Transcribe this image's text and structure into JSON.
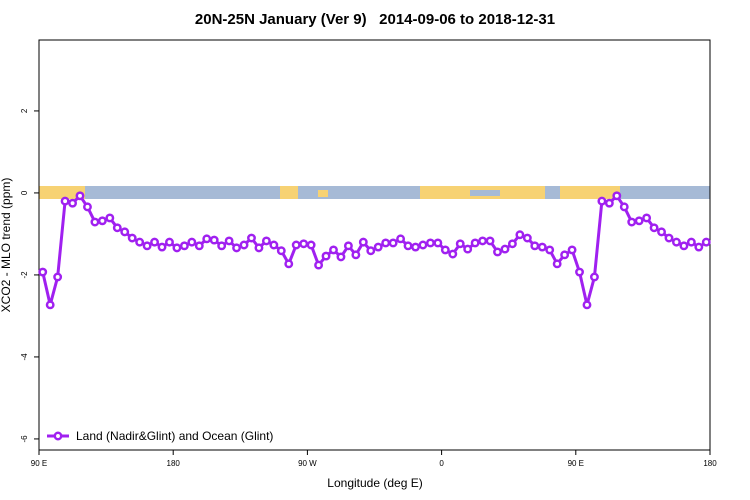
{
  "chart_data": {
    "type": "line",
    "title": "20N-25N January (Ver 9)   2014-09-06 to 2018-12-31",
    "x_label": "Longitude (deg E)",
    "y_label": "XCO2 - MLO trend (ppm)",
    "xlim": [
      90,
      540
    ],
    "ylim": [
      -6.27,
      3.73
    ],
    "xticks": [
      {
        "value": 90,
        "label": "90 E"
      },
      180,
      {
        "value": 270,
        "label": "90 W"
      },
      {
        "value": 360,
        "label": "0"
      },
      {
        "value": 450,
        "label": "90 E"
      },
      {
        "value": 540,
        "label": "180"
      }
    ],
    "yticks": [
      -6,
      -4,
      -2,
      0,
      2
    ],
    "legend": "bottom-left",
    "x": [
      92.5,
      97.5,
      102.5,
      107.5,
      112.5,
      117.5,
      122.5,
      127.5,
      132.5,
      137.5,
      142.5,
      147.5,
      152.5,
      157.5,
      162.5,
      167.5,
      172.5,
      177.5,
      182.5,
      187.5,
      192.5,
      197.5,
      202.5,
      207.5,
      212.5,
      217.5,
      222.5,
      227.5,
      232.5,
      237.5,
      242.5,
      247.5,
      252.5,
      257.5,
      262.5,
      267.5,
      272.5,
      277.5,
      282.5,
      287.5,
      292.5,
      297.5,
      302.5,
      307.5,
      312.5,
      317.5,
      322.5,
      327.5,
      332.5,
      337.5,
      342.5,
      347.5,
      352.5,
      357.5,
      362.5,
      367.5,
      372.5,
      377.5,
      382.5,
      387.5,
      392.5,
      397.5,
      402.5,
      407.5,
      412.5,
      417.5,
      422.5,
      427.5,
      432.5,
      437.5,
      442.5,
      447.5,
      452.5,
      457.5,
      462.5,
      467.5,
      472.5,
      477.5,
      482.5,
      487.5,
      492.5,
      497.5,
      502.5,
      507.5,
      512.5,
      517.5,
      522.5,
      527.5,
      532.5,
      537.5
    ],
    "series": [
      {
        "name": "Land (Nadir&Glint) and Ocean (Glint)",
        "color": "#a020f0",
        "values": [
          -1.93,
          -2.73,
          -2.05,
          -0.2,
          -0.25,
          -0.07,
          -0.34,
          -0.71,
          -0.68,
          -0.61,
          -0.85,
          -0.95,
          -1.1,
          -1.2,
          -1.29,
          -1.2,
          -1.32,
          -1.2,
          -1.34,
          -1.29,
          -1.2,
          -1.29,
          -1.12,
          -1.15,
          -1.29,
          -1.17,
          -1.34,
          -1.27,
          -1.1,
          -1.34,
          -1.17,
          -1.27,
          -1.41,
          -1.73,
          -1.27,
          -1.24,
          -1.27,
          -1.76,
          -1.54,
          -1.39,
          -1.56,
          -1.29,
          -1.51,
          -1.2,
          -1.41,
          -1.32,
          -1.22,
          -1.22,
          -1.12,
          -1.29,
          -1.32,
          -1.27,
          -1.22,
          -1.22,
          -1.39,
          -1.49,
          -1.24,
          -1.37,
          -1.22,
          -1.17,
          -1.17,
          -1.44,
          -1.37,
          -1.24,
          -1.02,
          -1.1,
          -1.29,
          -1.32,
          -1.39,
          -1.73,
          -1.51,
          -1.39,
          -1.93,
          -2.73,
          -2.05,
          -0.2,
          -0.25,
          -0.07,
          -0.34,
          -0.71,
          -0.68,
          -0.61,
          -0.85,
          -0.95,
          -1.1,
          -1.2,
          -1.29,
          -1.2,
          -1.32,
          -1.2
        ]
      }
    ]
  }
}
